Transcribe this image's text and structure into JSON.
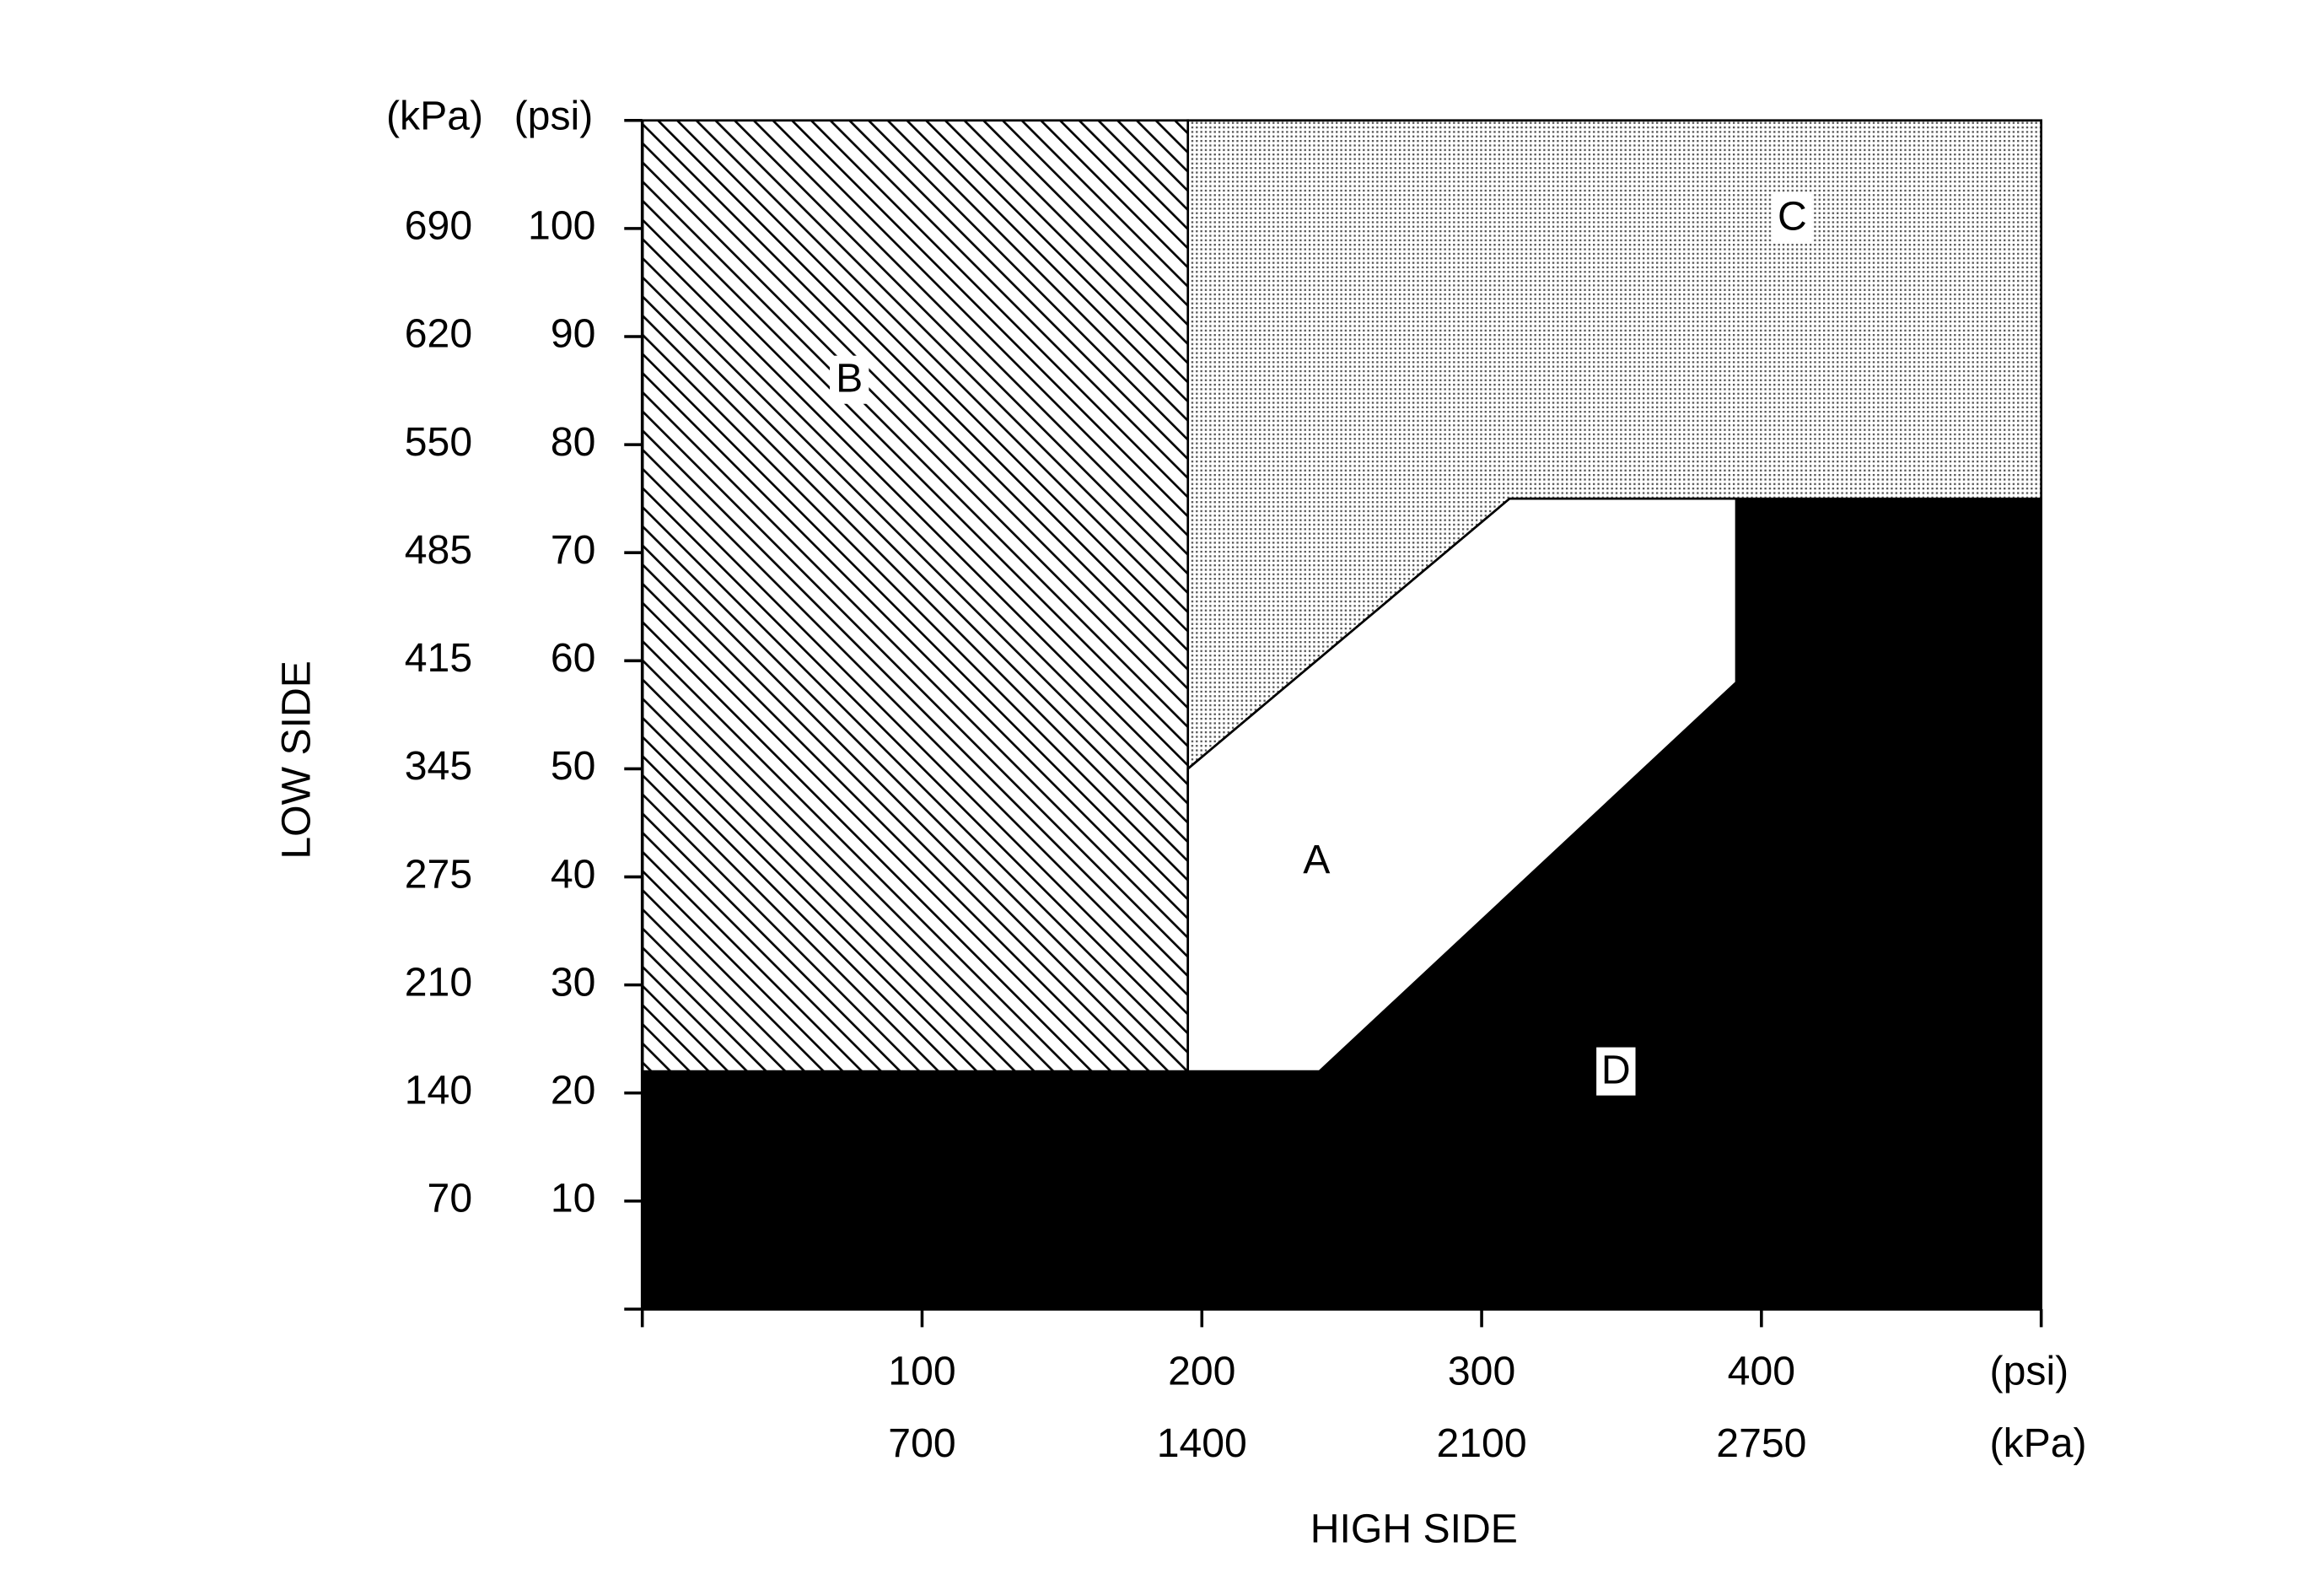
{
  "chart_data": {
    "type": "region",
    "xlim": [
      0,
      500
    ],
    "ylim": [
      0,
      110
    ],
    "xticks": [
      100,
      200,
      300,
      400
    ],
    "x_kpa_labels": [
      700,
      1400,
      2100,
      2750
    ],
    "yticks": [
      10,
      20,
      30,
      40,
      50,
      60,
      70,
      80,
      90,
      100
    ],
    "y_kpa_labels": [
      70,
      140,
      210,
      275,
      345,
      415,
      485,
      550,
      620,
      690
    ],
    "y_units": [
      "(kPa)",
      "(psi)"
    ],
    "x_units": [
      "(psi)",
      "(kPa)"
    ],
    "ylabel": "LOW SIDE",
    "xlabel": "HIGH SIDE",
    "regions": [
      {
        "name": "D",
        "fill": "black",
        "points": [
          [
            0,
            0
          ],
          [
            500,
            0
          ],
          [
            500,
            75
          ],
          [
            391,
            75
          ],
          [
            391,
            58
          ],
          [
            242,
            22
          ],
          [
            0,
            22
          ]
        ]
      },
      {
        "name": "C",
        "fill": "dots",
        "points": [
          [
            195,
            110
          ],
          [
            500,
            110
          ],
          [
            500,
            75
          ],
          [
            310,
            75
          ],
          [
            195,
            50
          ]
        ]
      },
      {
        "name": "B",
        "fill": "hatch",
        "points": [
          [
            0,
            22
          ],
          [
            195,
            22
          ],
          [
            195,
            110
          ],
          [
            0,
            110
          ]
        ]
      },
      {
        "name": "A",
        "fill": "white",
        "points": [
          [
            195,
            50
          ],
          [
            310,
            75
          ],
          [
            391,
            75
          ],
          [
            391,
            58
          ],
          [
            242,
            22
          ],
          [
            195,
            22
          ]
        ]
      }
    ]
  }
}
